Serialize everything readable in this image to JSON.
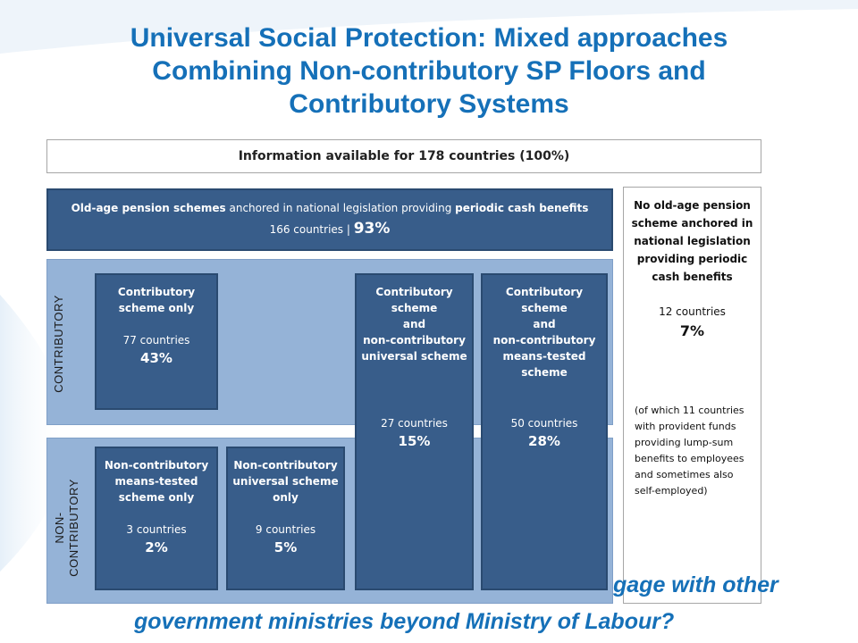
{
  "slide": {
    "title_lines": [
      "Universal Social Protection: Mixed approaches",
      "Combining Non-contributory SP Floors and",
      "Contributory Systems"
    ],
    "footer_lines": [
      "gage with other",
      "government ministries beyond Ministry of Labour?"
    ]
  },
  "diagram": {
    "info_bar": "Information available for 178 countries (100%)",
    "old_age": {
      "line1_bold_a": "Old-age pension schemes",
      "line1_normal": " anchored in national legislation providing ",
      "line1_bold_b": "periodic cash benefits",
      "line2_count": "166 countries | ",
      "line2_pct": "93%"
    },
    "band_labels": {
      "contributory": "CONTRIBUTORY",
      "noncontributory_1": "NON-",
      "noncontributory_2": "CONTRIBUTORY"
    },
    "boxes": {
      "contrib_only": {
        "l1": "Contributory",
        "l2": "scheme only",
        "count": "77 countries",
        "pct": "43%"
      },
      "contrib_universal": {
        "l1": "Contributory",
        "l2": "scheme",
        "l3": "and",
        "l4": "non-contributory",
        "l5": "universal scheme",
        "count": "27 countries",
        "pct": "15%"
      },
      "contrib_means": {
        "l1": "Contributory",
        "l2": "scheme",
        "l3": "and",
        "l4": "non-contributory",
        "l5": "means-tested",
        "l6": "scheme",
        "count": "50 countries",
        "pct": "28%"
      },
      "noncontrib_means": {
        "l1": "Non-contributory",
        "l2": "means-tested",
        "l3": "scheme only",
        "count": "3 countries",
        "pct": "2%"
      },
      "noncontrib_universal": {
        "l1": "Non-contributory",
        "l2": "universal scheme",
        "l3": "only",
        "count": "9 countries",
        "pct": "5%"
      }
    },
    "no_pension": {
      "l1": "No old-age pension",
      "l2": "scheme anchored in",
      "l3": "national legislation",
      "l4": "providing periodic",
      "l5": "cash benefits",
      "count": "12 countries",
      "pct": "7%",
      "note": [
        "(of which 11 countries",
        "with provident funds",
        "providing lump-sum",
        "benefits to employees",
        "and sometimes also",
        "self-employed)"
      ]
    }
  },
  "colors": {
    "title": "#1570b8",
    "dark_box": "#385d8a",
    "light_band": "#95b3d7"
  }
}
